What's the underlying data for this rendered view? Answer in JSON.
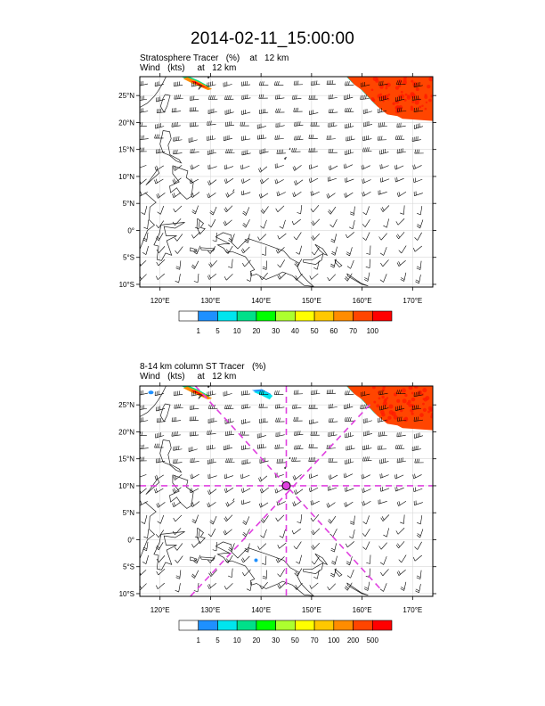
{
  "title": "2014-02-11_15:00:00",
  "panels": [
    {
      "header_line1": "Stratosphere Tracer   (%)    at   12 km",
      "header_line2": "Wind   (kts)     at   12 km",
      "lat_labels": [
        "25°N",
        "20°N",
        "15°N",
        "10°N",
        "5°N",
        "0°",
        "5°S",
        "10°S"
      ],
      "lon_labels": [
        "120°E",
        "130°E",
        "140°E",
        "150°E",
        "160°E",
        "170°E"
      ],
      "colorbar": {
        "labels": [
          "1",
          "5",
          "10",
          "20",
          "30",
          "40",
          "50",
          "60",
          "70",
          "100"
        ],
        "colors": [
          "#ffffff",
          "#1e90ff",
          "#00e5ee",
          "#00e08a",
          "#00ff00",
          "#adff2f",
          "#ffff00",
          "#ffc800",
          "#ff8c00",
          "#ff4500",
          "#ff0000"
        ]
      }
    },
    {
      "header_line1": "8-14 km column ST Tracer   (%)",
      "header_line2": "Wind   (kts)     at   12 km",
      "lat_labels": [
        "25°N",
        "20°N",
        "15°N",
        "10°N",
        "5°N",
        "0°",
        "5°S",
        "10°S"
      ],
      "lon_labels": [
        "120°E",
        "130°E",
        "140°E",
        "150°E",
        "160°E",
        "170°E"
      ],
      "colorbar": {
        "labels": [
          "1",
          "5",
          "10",
          "20",
          "30",
          "50",
          "70",
          "100",
          "200",
          "500"
        ],
        "colors": [
          "#ffffff",
          "#1e90ff",
          "#00e5ee",
          "#00e08a",
          "#00ff00",
          "#adff2f",
          "#ffff00",
          "#ffc800",
          "#ff8c00",
          "#ff4500",
          "#ff0000"
        ]
      },
      "marker_color": "#e040e0"
    }
  ],
  "map_extent": {
    "lon_min": 116,
    "lon_max": 174,
    "lat_min": -10.5,
    "lat_max": 28.5
  }
}
